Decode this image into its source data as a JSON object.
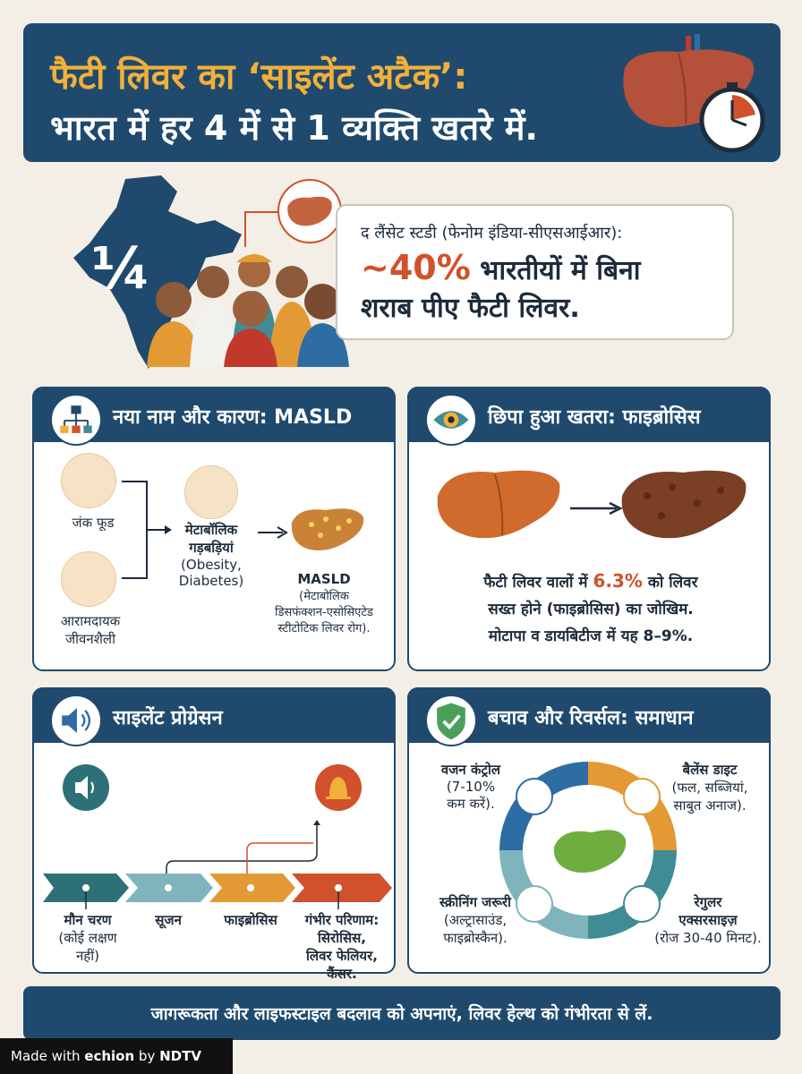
{
  "header": {
    "title_line1": "फैटी लिवर का ‘साइलेंट अटैक’:",
    "title_line2": "भारत में हर 4 में से 1 व्यक्ति खतरे में."
  },
  "hero": {
    "fraction": "¼",
    "source": "द लैंसेट स्टडी (फेनोम इंडिया-सीएसआईआर):",
    "percent": "~40%",
    "line2_rest": " भारतीयों में बिना",
    "line3": "शराब पीए फैटी लिवर."
  },
  "masld_card": {
    "title": "नया नाम और कारण: MASLD",
    "junk_food": "जंक फूड",
    "lifestyle_1": "आरामदायक",
    "lifestyle_2": "जीवनशैली",
    "metabolic_1": "मेटाबॉलिक",
    "metabolic_2": "गड़बड़ियां",
    "metabolic_3": "(Obesity,",
    "metabolic_4": "Diabetes)",
    "masld": "MASLD",
    "masld_1": "(मेटाबोलिक",
    "masld_2": "डिसफंक्शन-एसोसिएटेड",
    "masld_3": "स्टीटोटिक लिवर रोग)."
  },
  "fibrosis_card": {
    "title": "छिपा हुआ खतरा: फाइब्रोसिस",
    "line1_a": "फैटी लिवर वालों में ",
    "line1_pct": "6.3%",
    "line1_b": " को लिवर",
    "line2": "सख्त होने (फाइब्रोसिस) का जोखिम.",
    "line3": "मोटापा व डायबिटीज में यह 8–9%."
  },
  "progression_card": {
    "title": "साइलेंट प्रोग्रेसन",
    "stage1": "मौन चरण",
    "stage1_sub1": "(कोई लक्षण",
    "stage1_sub2": "नहीं)",
    "stage2": "सूजन",
    "stage3": "फाइब्रोसिस",
    "stage4": "गंभीर परिणाम:",
    "stage4_sub1": "सिरोसिस,",
    "stage4_sub2": "लिवर फेलियर,",
    "stage4_sub3": "कैंसर."
  },
  "solution_card": {
    "title": "बचाव और रिवर्सल: समाधान",
    "weight": "वजन कंट्रोल",
    "weight_1": "(7-10%",
    "weight_2": "कम करें).",
    "diet": "बैलेंस डाइट",
    "diet_1": "(फल, सब्जियां,",
    "diet_2": "साबुत अनाज).",
    "screening": "स्क्रीनिंग जरूरी",
    "screening_1": "(अल्ट्रासाउंड,",
    "screening_2": "फाइब्रोस्कैन).",
    "exercise_1": "रेगुलर",
    "exercise_2": "एक्सरसाइज़",
    "exercise_3": "(रोज 30-40 मिनट)."
  },
  "footer": {
    "text": "जागरूकता और लाइफस्टाइल बदलाव को अपनाएं, लिवर हेल्थ को गंभीरता से लें."
  },
  "watermark": {
    "made_with": "Made with",
    "brand": "echion",
    "by": "by",
    "org": "NDTV"
  },
  "colors": {
    "navy": "#1f4a6e",
    "accent_orange": "#f2b03a",
    "accent_red": "#d0512b",
    "teal": "#3f8c95",
    "background": "#f3efe6"
  }
}
